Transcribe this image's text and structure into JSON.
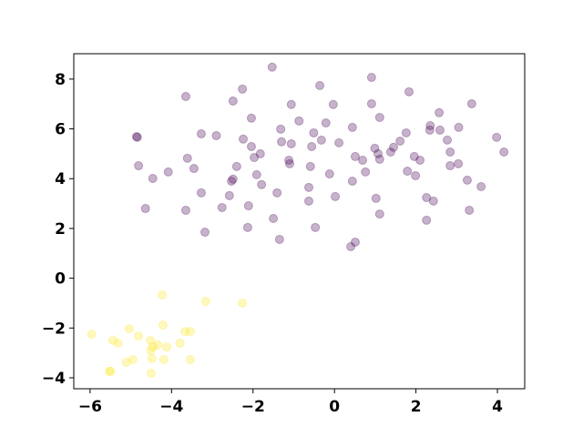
{
  "chart_data": {
    "type": "scatter",
    "alpha": 0.3,
    "xlim": [
      -6.4,
      4.67
    ],
    "ylim": [
      -4.44,
      9.02
    ],
    "xticks": [
      {
        "value": -6,
        "label": "−6"
      },
      {
        "value": -4,
        "label": "−4"
      },
      {
        "value": -2,
        "label": "−2"
      },
      0,
      2,
      4
    ],
    "yticks": [
      {
        "value": -4,
        "label": "−4"
      },
      {
        "value": -2,
        "label": "−2"
      },
      0,
      2,
      4,
      6,
      8
    ],
    "series": [
      {
        "color": "#440154",
        "x": [
          -1.53,
          -3.65,
          -2.26,
          -0.36,
          0.91,
          1.83,
          -2.49,
          -1.06,
          -0.03,
          0.91,
          3.37,
          2.57,
          -2.04,
          -0.87,
          -0.21,
          1.11,
          2.35,
          2.34,
          3.05,
          -1.32,
          0.44,
          -0.51,
          -3.27,
          -2.9,
          1.76,
          2.59,
          -4.86,
          -4.84,
          3.98,
          -2.24,
          -1.3,
          -1.06,
          -0.32,
          0.11,
          2.77,
          -0.56,
          -2.04,
          1.61,
          1.45,
          1.38,
          0.99,
          4.16,
          1.07,
          2.84,
          -1.82,
          -1.97,
          -1.12,
          -3.61,
          0.51,
          1.11,
          0.69,
          1.96,
          2.1,
          -1.1,
          3.04,
          2.84,
          -4.81,
          -2.4,
          -3.45,
          -0.59,
          -4.08,
          1.79,
          -1.91,
          -0.12,
          -4.46,
          0.76,
          1.99,
          -2.49,
          -2.53,
          0.44,
          3.26,
          3.6,
          -1.79,
          -3.27,
          -1.41,
          -2.58,
          -0.63,
          0.02,
          1.02,
          2.26,
          2.43,
          -0.63,
          3.31,
          -3.65,
          -4.64,
          -2.76,
          -2.11,
          1.11,
          -1.5,
          2.26,
          -2.13,
          -0.47,
          -3.18,
          -1.35,
          0.51,
          0.4
        ],
        "values": [
          8.48,
          7.3,
          7.6,
          7.74,
          8.07,
          7.49,
          7.12,
          6.98,
          6.98,
          7.01,
          7.01,
          6.65,
          6.43,
          6.32,
          6.24,
          6.46,
          6.13,
          5.95,
          6.06,
          5.99,
          6.06,
          5.84,
          5.8,
          5.73,
          5.84,
          5.95,
          5.69,
          5.66,
          5.66,
          5.59,
          5.48,
          5.4,
          5.55,
          5.44,
          5.55,
          5.29,
          5.29,
          5.51,
          5.26,
          5.07,
          5.22,
          5.07,
          5.0,
          5.07,
          5.0,
          4.85,
          4.74,
          4.82,
          4.89,
          4.78,
          4.74,
          4.89,
          4.74,
          4.6,
          4.6,
          4.52,
          4.52,
          4.49,
          4.41,
          4.49,
          4.27,
          4.3,
          4.16,
          4.19,
          4.01,
          4.27,
          4.12,
          3.98,
          3.9,
          3.9,
          3.94,
          3.68,
          3.76,
          3.43,
          3.43,
          3.32,
          3.65,
          3.28,
          3.21,
          3.24,
          3.1,
          3.1,
          2.73,
          2.73,
          2.8,
          2.84,
          2.91,
          2.58,
          2.4,
          2.33,
          2.04,
          2.04,
          1.85,
          1.56,
          1.45,
          1.27
        ]
      },
      {
        "color": "#fde725",
        "x": [
          -4.23,
          -3.16,
          -2.26,
          -4.21,
          -5.04,
          -3.67,
          -3.54,
          -5.96,
          -4.81,
          -5.44,
          -5.31,
          -3.79,
          -4.52,
          -4.34,
          -4.12,
          -4.46,
          -4.51,
          -4.95,
          -4.48,
          -4.19,
          -3.54,
          -5.11,
          -5.53,
          -5.49,
          -4.5
        ],
        "values": [
          -0.67,
          -0.93,
          -1.0,
          -1.88,
          -2.03,
          -2.14,
          -2.14,
          -2.25,
          -2.32,
          -2.5,
          -2.61,
          -2.61,
          -2.5,
          -2.68,
          -2.76,
          -2.76,
          -2.9,
          -3.27,
          -3.23,
          -3.27,
          -3.27,
          -3.38,
          -3.74,
          -3.74,
          -3.82
        ]
      }
    ]
  }
}
